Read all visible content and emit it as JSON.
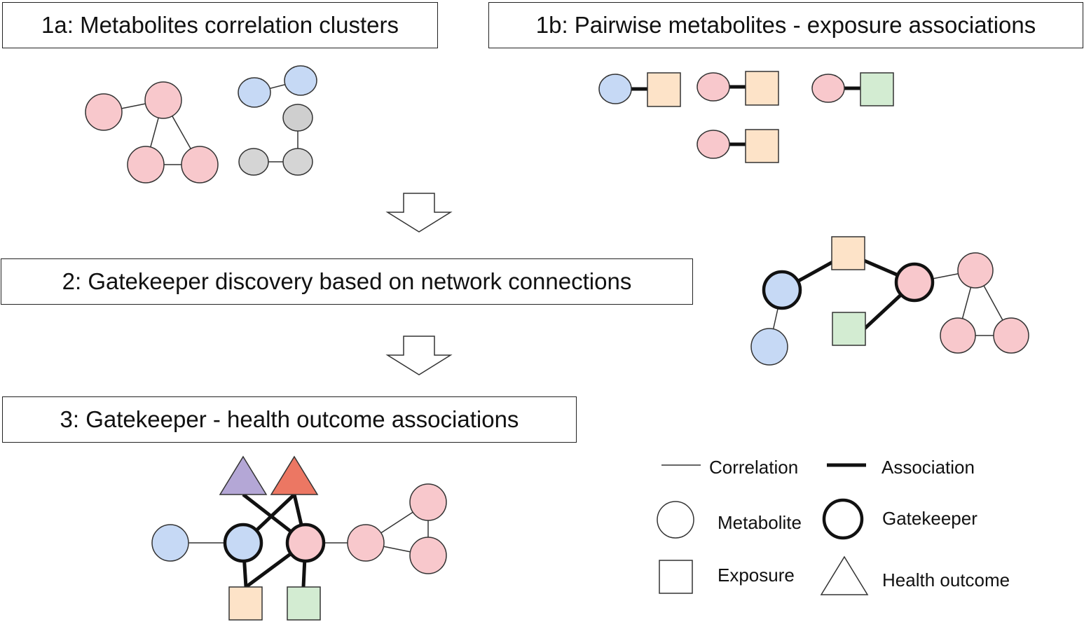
{
  "steps": {
    "step_1a": "1a: Metabolites correlation clusters",
    "step_1b": "1b: Pairwise metabolites - exposure associations",
    "step_2": "2: Gatekeeper discovery based on network connections",
    "step_3": "3: Gatekeeper - health outcome associations"
  },
  "legend": {
    "correlation": "Correlation",
    "association": "Association",
    "metabolite": "Metabolite",
    "gatekeeper": "Gatekeeper",
    "exposure": "Exposure",
    "health_outcome": "Health outcome"
  },
  "colors": {
    "metabolite_pink": "#f8c8cc",
    "metabolite_blue": "#c6d9f5",
    "metabolite_gray": "#d0d0d0",
    "exposure_orange": "#fde3c8",
    "exposure_green": "#d3ecd2",
    "outcome_purple": "#b4a7d6",
    "outcome_red": "#ec7763",
    "stroke": "#111111"
  }
}
